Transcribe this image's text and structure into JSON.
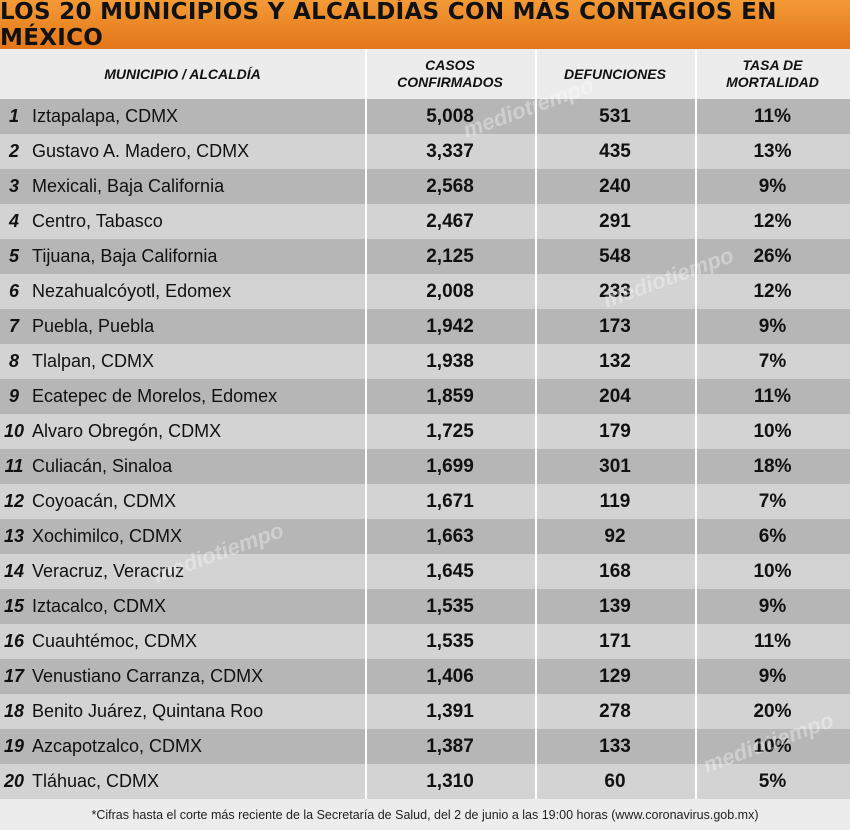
{
  "title": "LOS 20 MUNICIPIOS Y ALCALDÍAS CON MÁS CONTAGIOS EN MÉXICO",
  "headers": {
    "municipio": "MUNICIPIO / ALCALDÍA",
    "casos": "CASOS\nCONFIRMADOS",
    "defunciones": "DEFUNCIONES",
    "tasa": "TASA DE\nMORTALIDAD"
  },
  "rows": [
    {
      "rank": "1",
      "name": "Iztapalapa, CDMX",
      "casos": "5,008",
      "defunciones": "531",
      "tasa": "11%"
    },
    {
      "rank": "2",
      "name": "Gustavo A. Madero, CDMX",
      "casos": "3,337",
      "defunciones": "435",
      "tasa": "13%"
    },
    {
      "rank": "3",
      "name": "Mexicali, Baja California",
      "casos": "2,568",
      "defunciones": "240",
      "tasa": "9%"
    },
    {
      "rank": "4",
      "name": "Centro, Tabasco",
      "casos": "2,467",
      "defunciones": "291",
      "tasa": "12%"
    },
    {
      "rank": "5",
      "name": "Tijuana, Baja California",
      "casos": "2,125",
      "defunciones": "548",
      "tasa": "26%"
    },
    {
      "rank": "6",
      "name": "Nezahualcóyotl, Edomex",
      "casos": "2,008",
      "defunciones": "233",
      "tasa": "12%"
    },
    {
      "rank": "7",
      "name": "Puebla, Puebla",
      "casos": "1,942",
      "defunciones": "173",
      "tasa": "9%"
    },
    {
      "rank": "8",
      "name": "Tlalpan, CDMX",
      "casos": "1,938",
      "defunciones": "132",
      "tasa": "7%"
    },
    {
      "rank": "9",
      "name": "Ecatepec de Morelos, Edomex",
      "casos": "1,859",
      "defunciones": "204",
      "tasa": "11%"
    },
    {
      "rank": "10",
      "name": "Alvaro Obregón, CDMX",
      "casos": "1,725",
      "defunciones": "179",
      "tasa": "10%"
    },
    {
      "rank": "11",
      "name": "Culiacán, Sinaloa",
      "casos": "1,699",
      "defunciones": "301",
      "tasa": "18%"
    },
    {
      "rank": "12",
      "name": "Coyoacán, CDMX",
      "casos": "1,671",
      "defunciones": "119",
      "tasa": "7%"
    },
    {
      "rank": "13",
      "name": "Xochimilco, CDMX",
      "casos": "1,663",
      "defunciones": "92",
      "tasa": "6%"
    },
    {
      "rank": "14",
      "name": "Veracruz, Veracruz",
      "casos": "1,645",
      "defunciones": "168",
      "tasa": "10%"
    },
    {
      "rank": "15",
      "name": "Iztacalco, CDMX",
      "casos": "1,535",
      "defunciones": "139",
      "tasa": "9%"
    },
    {
      "rank": "16",
      "name": "Cuauhtémoc, CDMX",
      "casos": "1,535",
      "defunciones": "171",
      "tasa": "11%"
    },
    {
      "rank": "17",
      "name": "Venustiano Carranza, CDMX",
      "casos": "1,406",
      "defunciones": "129",
      "tasa": "9%"
    },
    {
      "rank": "18",
      "name": "Benito Juárez, Quintana Roo",
      "casos": "1,391",
      "defunciones": "278",
      "tasa": "20%"
    },
    {
      "rank": "19",
      "name": "Azcapotzalco, CDMX",
      "casos": "1,387",
      "defunciones": "133",
      "tasa": "10%"
    },
    {
      "rank": "20",
      "name": "Tláhuac, CDMX",
      "casos": "1,310",
      "defunciones": "60",
      "tasa": "5%"
    }
  ],
  "footnote": "*Cifras hasta el corte más reciente de la Secretaría de Salud, del 2 de junio a las 19:00 horas (www.coronavirus.gob.mx)",
  "watermark": "mediotiempo",
  "colors": {
    "title_bg": "#ee8a28",
    "row_dark": "#b6b6b6",
    "row_light": "#d3d3d3",
    "header_bg": "#ececec"
  }
}
